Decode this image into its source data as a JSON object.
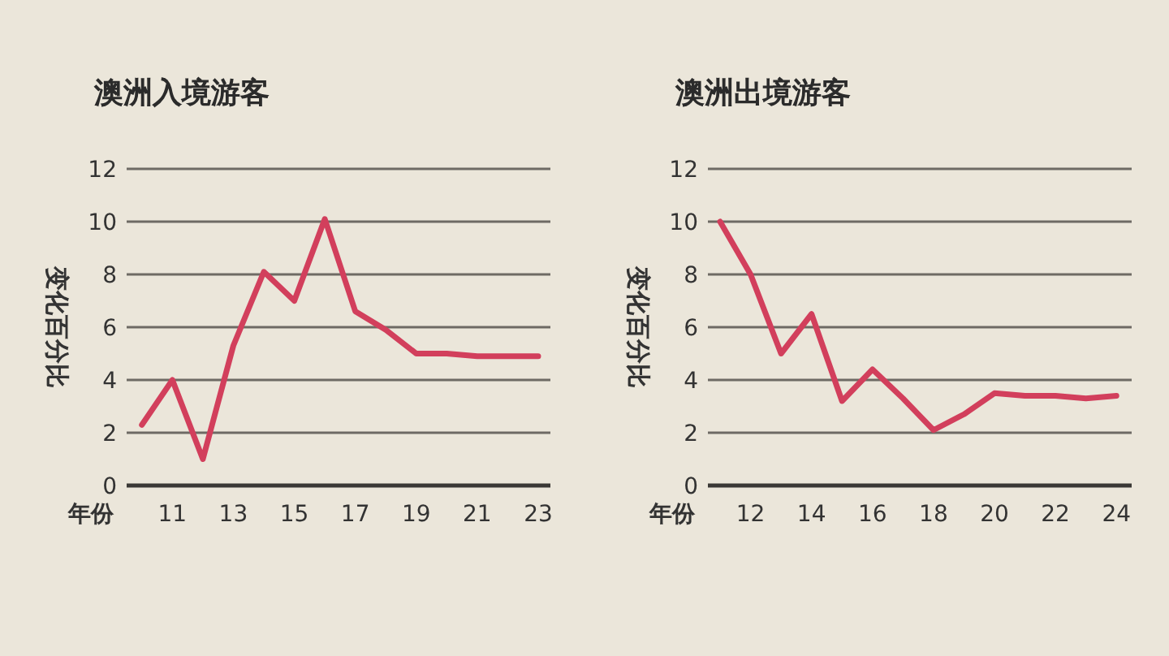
{
  "chart_data": [
    {
      "type": "line",
      "title": "澳洲入境游客",
      "xlabel": "年份",
      "ylabel": "变化百分比",
      "color": "#d23f5c",
      "grid": "y",
      "x": [
        10,
        11,
        12,
        13,
        14,
        15,
        16,
        17,
        18,
        19,
        20,
        21,
        22,
        23
      ],
      "values": [
        2.3,
        4.0,
        1.0,
        5.3,
        8.1,
        7.0,
        10.1,
        6.6,
        5.9,
        5.0,
        5.0,
        4.9,
        4.9,
        4.9
      ],
      "xlim": [
        9.5,
        23.4
      ],
      "xticks": [
        11,
        13,
        15,
        17,
        19,
        21,
        23
      ],
      "ylim": [
        0,
        12
      ],
      "yticks": [
        0,
        2,
        4,
        6,
        8,
        10,
        12
      ]
    },
    {
      "type": "line",
      "title": "澳洲出境游客",
      "xlabel": "年份",
      "ylabel": "变化百分比",
      "color": "#d23f5c",
      "grid": "y",
      "x": [
        11,
        12,
        13,
        14,
        15,
        16,
        17,
        18,
        19,
        20,
        21,
        22,
        23,
        24
      ],
      "values": [
        10.0,
        8.0,
        5.0,
        6.5,
        3.2,
        4.4,
        3.3,
        2.1,
        2.7,
        3.5,
        3.4,
        3.4,
        3.3,
        3.4
      ],
      "xlim": [
        10.6,
        24.5
      ],
      "xticks": [
        12,
        14,
        16,
        18,
        20,
        22,
        24
      ],
      "ylim": [
        0,
        12
      ],
      "yticks": [
        0,
        2,
        4,
        6,
        8,
        10,
        12
      ]
    }
  ]
}
